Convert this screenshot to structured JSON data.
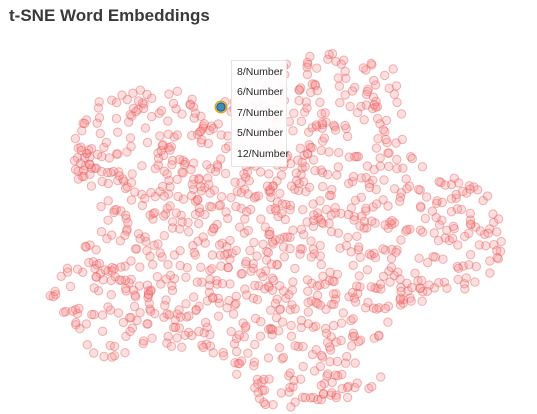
{
  "title": "t-SNE Word Embeddings",
  "tooltip": {
    "items": [
      "8/Number",
      "6/Number",
      "7/Number",
      "5/Number",
      "12/Number"
    ]
  },
  "colors": {
    "point_fill": "#fa8c8c",
    "point_stroke": "#e25252",
    "highlight_fill": "#3d8fb6",
    "highlight_ring": "#e0a020",
    "title_text": "#3a3a3a"
  }
}
